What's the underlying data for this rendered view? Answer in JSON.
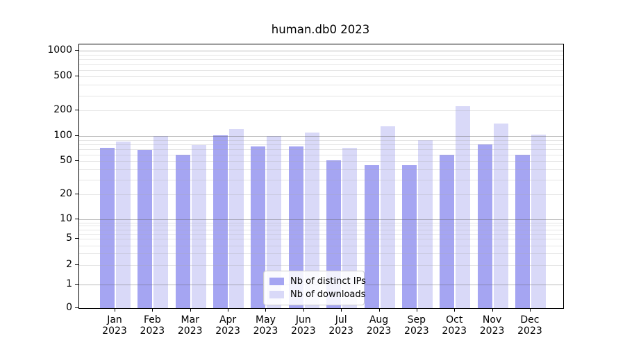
{
  "title": "human.db0 2023",
  "chart_data": {
    "type": "bar",
    "title": "human.db0 2023",
    "categories": [
      "Jan",
      "Feb",
      "Mar",
      "Apr",
      "May",
      "Jun",
      "Jul",
      "Aug",
      "Sep",
      "Oct",
      "Nov",
      "Dec"
    ],
    "category_year": "2023",
    "series": [
      {
        "name": "Nb of distinct IPs",
        "color": "#a5a5f2",
        "values": [
          72,
          68,
          60,
          102,
          76,
          76,
          51,
          45,
          45,
          60,
          80,
          60
        ]
      },
      {
        "name": "Nb of downloads",
        "color": "#d9d9f8",
        "values": [
          86,
          100,
          78,
          122,
          100,
          110,
          73,
          131,
          90,
          225,
          140,
          104
        ]
      }
    ],
    "xlabel": "",
    "ylabel": "",
    "yscale": "symlog",
    "ylim": [
      0,
      1200
    ],
    "yticks_labeled": [
      1000,
      500,
      200,
      100,
      50,
      20,
      10,
      5,
      2,
      1,
      0
    ],
    "grid": {
      "major_values": [
        1,
        10,
        100,
        1000
      ],
      "minor_multiples_per_decade": [
        2,
        3,
        4,
        5,
        6,
        7,
        8,
        9
      ],
      "minor_decades": [
        1,
        10,
        100
      ]
    },
    "legend_position": "lower center"
  }
}
